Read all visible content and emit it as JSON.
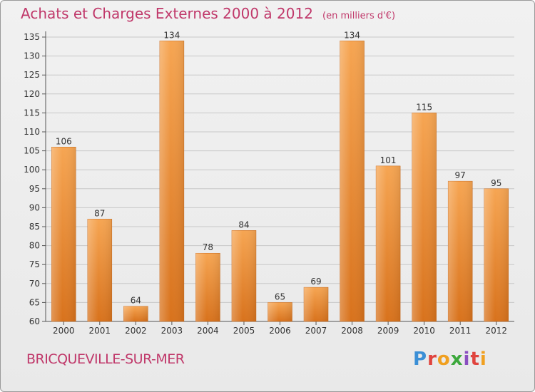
{
  "header": {
    "title": "Achats et Charges Externes 2000 à 2012",
    "subtitle": "(en milliers d'€)"
  },
  "footer": {
    "place": "BRICQUEVILLE-SUR-MER",
    "logo": "Proxiti"
  },
  "colors": {
    "title": "#c0386a",
    "bar_top": "#f6a552",
    "bar_bottom": "#d8721c",
    "grid": "#c8c8c8"
  },
  "chart_data": {
    "type": "bar",
    "title": "Achats et Charges Externes 2000 à 2012",
    "subtitle": "(en milliers d'€)",
    "categories": [
      "2000",
      "2001",
      "2002",
      "2003",
      "2004",
      "2005",
      "2006",
      "2007",
      "2008",
      "2009",
      "2010",
      "2011",
      "2012"
    ],
    "values": [
      106,
      87,
      64,
      134,
      78,
      84,
      65,
      69,
      134,
      101,
      115,
      97,
      95
    ],
    "ylim": [
      60,
      135
    ],
    "yticks": [
      60,
      65,
      70,
      75,
      80,
      85,
      90,
      95,
      100,
      105,
      110,
      115,
      120,
      125,
      130,
      135
    ],
    "grid": true,
    "xlabel": "",
    "ylabel": ""
  }
}
